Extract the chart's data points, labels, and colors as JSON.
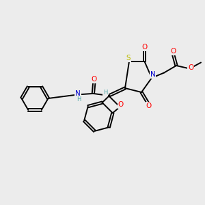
{
  "background_color": "#ececec",
  "fig_width": 3.0,
  "fig_height": 3.0,
  "dpi": 100,
  "atom_colors": {
    "C": "#000000",
    "N": "#0000cc",
    "O": "#ff0000",
    "S": "#bbbb00",
    "H": "#4da6a6"
  },
  "bond_color": "#000000",
  "bond_width": 1.4,
  "font_size_atom": 7.5,
  "font_size_small": 6.0,
  "xlim": [
    0,
    10
  ],
  "ylim": [
    0,
    10
  ]
}
